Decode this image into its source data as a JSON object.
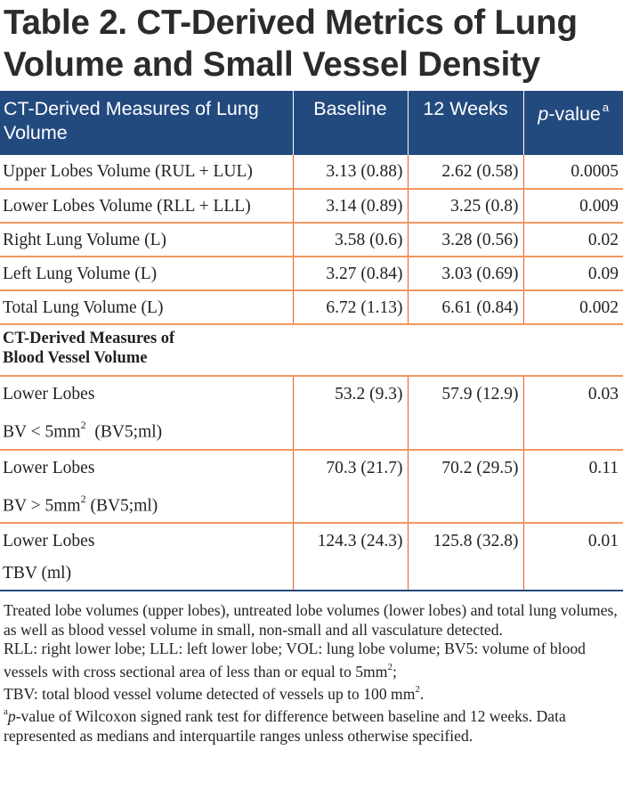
{
  "title": "Table 2. CT-Derived Metrics of Lung Volume and Small Vessel Density",
  "header": {
    "col1": "CT-Derived Measures of Lung Volume",
    "col2": "Baseline",
    "col3": "12 Weeks",
    "col4_italic": "p",
    "col4_rest": "-value",
    "col4_sup": "a"
  },
  "rows": [
    {
      "label": "Upper Lobes Volume (RUL + LUL)",
      "baseline": "3.13 (0.88)",
      "week12": "2.62 (0.58)",
      "p": "0.0005"
    },
    {
      "label": "Lower Lobes Volume (RLL + LLL)",
      "baseline": "3.14 (0.89)",
      "week12": "3.25 (0.8)",
      "p": "0.009"
    },
    {
      "label": "Right Lung Volume (L)",
      "baseline": "3.58 (0.6)",
      "week12": "3.28 (0.56)",
      "p": "0.02"
    },
    {
      "label": "Left Lung Volume (L)",
      "baseline": "3.27 (0.84)",
      "week12": "3.03 (0.69)",
      "p": "0.09"
    },
    {
      "label": "Total Lung Volume (L)",
      "baseline": "6.72 (1.13)",
      "week12": "6.61 (0.84)",
      "p": "0.002"
    }
  ],
  "section2": {
    "line1": "CT-Derived Measures of",
    "line2": "Blood Vessel Volume"
  },
  "vessel_rows": [
    {
      "line1": "Lower Lobes",
      "line2_pre": "BV < 5mm",
      "line2_sup": "2",
      "line2_post": "  (BV5;ml)",
      "baseline": "53.2 (9.3)",
      "week12": "57.9 (12.9)",
      "p": "0.03"
    },
    {
      "line1": "Lower Lobes",
      "line2_pre": "BV > 5mm",
      "line2_sup": "2",
      "line2_post": " (BV5;ml)",
      "baseline": "70.3 (21.7)",
      "week12": "70.2 (29.5)",
      "p": "0.11"
    },
    {
      "line1": "Lower Lobes",
      "line2_pre": "TBV (ml)",
      "line2_sup": "",
      "line2_post": "",
      "baseline": "124.3 (24.3)",
      "week12": "125.8 (32.8)",
      "p": "0.01"
    }
  ],
  "notes": {
    "n1": "Treated lobe volumes (upper lobes), untreated lobe volumes (lower lobes) and total lung volumes, as well as blood vessel volume in small, non-small and all vasculature detected.",
    "n2_pre": "RLL: right lower lobe; LLL: left lower lobe; VOL: lung lobe volume; BV5: volume of blood vessels with cross sectional area of less than or equal to 5mm",
    "n2_sup": "2",
    "n2_post": ";",
    "n3_pre": "TBV: total blood vessel volume detected of vessels up to 100 mm",
    "n3_sup": "2",
    "n3_post": ".",
    "n4_sup": "a",
    "n4_italic": "p",
    "n4_rest": "-value of Wilcoxon signed rank test for difference between baseline and 12 weeks. Data represented as medians and interquartile ranges unless otherwise specified."
  }
}
